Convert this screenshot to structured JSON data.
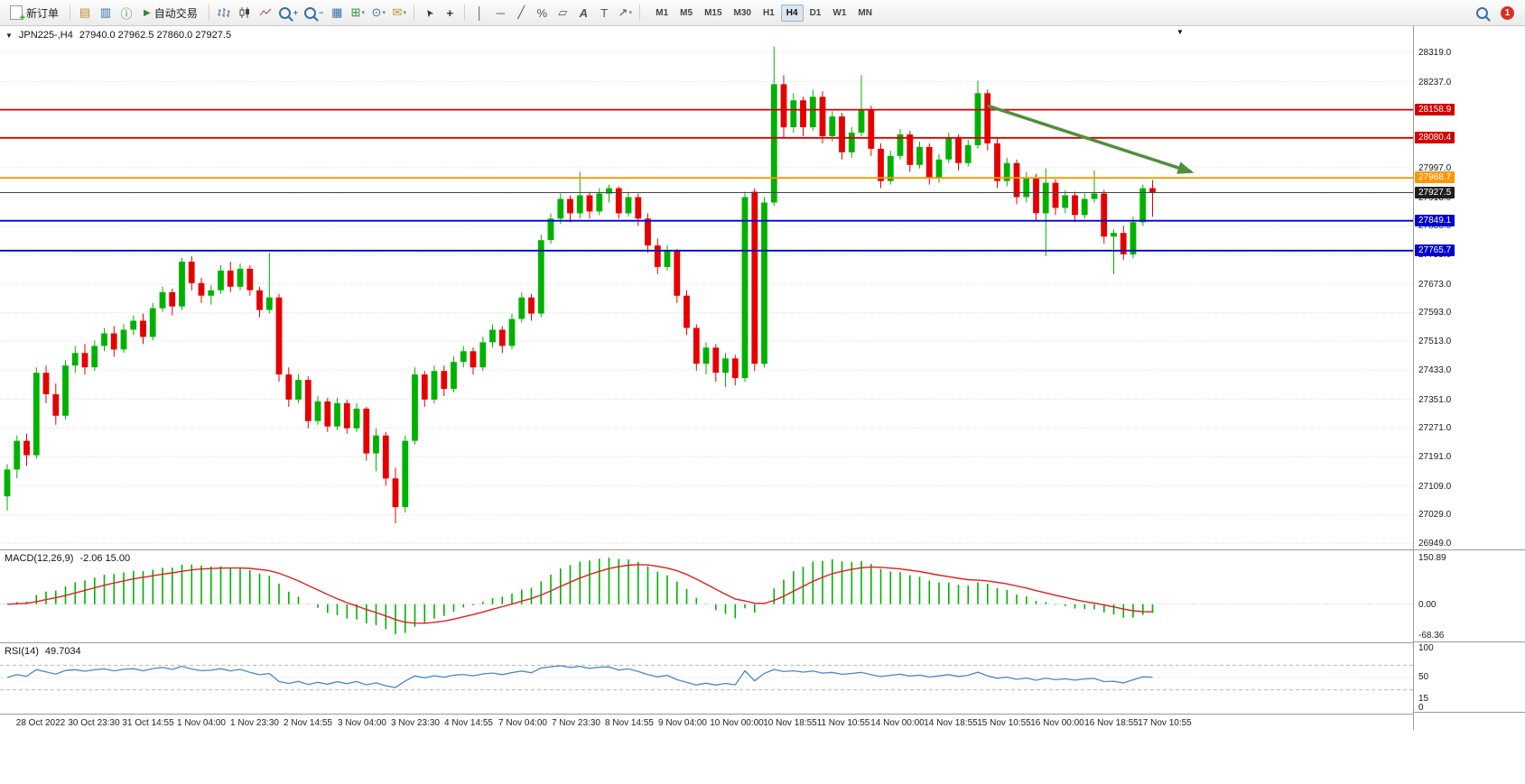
{
  "toolbar": {
    "new_order_label": "新订单",
    "algo_trading_label": "自动交易",
    "timeframes": [
      "M1",
      "M5",
      "M15",
      "M30",
      "H1",
      "H4",
      "D1",
      "W1",
      "MN"
    ],
    "active_timeframe": "H4",
    "notification_count": "1"
  },
  "chart": {
    "symbol_title": "JPN225-,H4",
    "ohlc_text": "27940.0 27962.5 27860.0 27927.5"
  },
  "chart_data": {
    "type": "candlestick",
    "symbol": "JPN225-",
    "timeframe": "H4",
    "scale": {
      "x0": 8,
      "dx": 10.75,
      "y_range": [
        26932,
        28392
      ]
    },
    "candles": [
      [
        27080,
        27170,
        27040,
        27155
      ],
      [
        27155,
        27250,
        27130,
        27235
      ],
      [
        27235,
        27255,
        27165,
        27195
      ],
      [
        27195,
        27440,
        27185,
        27425
      ],
      [
        27425,
        27445,
        27340,
        27365
      ],
      [
        27365,
        27395,
        27280,
        27305
      ],
      [
        27305,
        27460,
        27295,
        27445
      ],
      [
        27445,
        27500,
        27425,
        27480
      ],
      [
        27480,
        27505,
        27420,
        27440
      ],
      [
        27440,
        27515,
        27430,
        27500
      ],
      [
        27500,
        27550,
        27485,
        27535
      ],
      [
        27535,
        27555,
        27470,
        27490
      ],
      [
        27490,
        27560,
        27480,
        27545
      ],
      [
        27545,
        27585,
        27530,
        27570
      ],
      [
        27570,
        27590,
        27505,
        27525
      ],
      [
        27525,
        27620,
        27515,
        27605
      ],
      [
        27605,
        27665,
        27595,
        27650
      ],
      [
        27650,
        27660,
        27585,
        27610
      ],
      [
        27610,
        27745,
        27600,
        27735
      ],
      [
        27735,
        27750,
        27655,
        27675
      ],
      [
        27675,
        27690,
        27620,
        27640
      ],
      [
        27640,
        27670,
        27615,
        27655
      ],
      [
        27655,
        27725,
        27645,
        27710
      ],
      [
        27710,
        27735,
        27650,
        27665
      ],
      [
        27665,
        27730,
        27655,
        27715
      ],
      [
        27715,
        27725,
        27640,
        27655
      ],
      [
        27655,
        27665,
        27580,
        27600
      ],
      [
        27600,
        27760,
        27590,
        27635
      ],
      [
        27635,
        27645,
        27400,
        27420
      ],
      [
        27420,
        27440,
        27330,
        27350
      ],
      [
        27350,
        27420,
        27340,
        27405
      ],
      [
        27405,
        27415,
        27270,
        27290
      ],
      [
        27290,
        27360,
        27280,
        27345
      ],
      [
        27345,
        27355,
        27260,
        27275
      ],
      [
        27275,
        27355,
        27265,
        27340
      ],
      [
        27340,
        27350,
        27255,
        27270
      ],
      [
        27270,
        27340,
        27260,
        27325
      ],
      [
        27325,
        27330,
        27180,
        27200
      ],
      [
        27200,
        27270,
        27150,
        27250
      ],
      [
        27250,
        27260,
        27110,
        27130
      ],
      [
        27130,
        27160,
        27005,
        27050
      ],
      [
        27050,
        27250,
        27035,
        27235
      ],
      [
        27235,
        27440,
        27225,
        27420
      ],
      [
        27420,
        27430,
        27330,
        27350
      ],
      [
        27350,
        27445,
        27340,
        27430
      ],
      [
        27430,
        27445,
        27360,
        27380
      ],
      [
        27380,
        27470,
        27370,
        27455
      ],
      [
        27455,
        27500,
        27440,
        27485
      ],
      [
        27485,
        27495,
        27420,
        27440
      ],
      [
        27440,
        27525,
        27430,
        27510
      ],
      [
        27510,
        27560,
        27495,
        27545
      ],
      [
        27545,
        27555,
        27480,
        27500
      ],
      [
        27500,
        27590,
        27490,
        27575
      ],
      [
        27575,
        27650,
        27565,
        27635
      ],
      [
        27635,
        27645,
        27570,
        27590
      ],
      [
        27590,
        27810,
        27580,
        27795
      ],
      [
        27795,
        27870,
        27785,
        27855
      ],
      [
        27855,
        27925,
        27840,
        27910
      ],
      [
        27910,
        27920,
        27845,
        27870
      ],
      [
        27870,
        27985,
        27855,
        27920
      ],
      [
        27920,
        27930,
        27855,
        27875
      ],
      [
        27875,
        27940,
        27865,
        27925
      ],
      [
        27925,
        27950,
        27900,
        27940
      ],
      [
        27940,
        27945,
        27855,
        27870
      ],
      [
        27870,
        27930,
        27860,
        27915
      ],
      [
        27915,
        27925,
        27835,
        27855
      ],
      [
        27855,
        27870,
        27760,
        27780
      ],
      [
        27780,
        27800,
        27700,
        27720
      ],
      [
        27720,
        27780,
        27710,
        27765
      ],
      [
        27765,
        27770,
        27620,
        27640
      ],
      [
        27640,
        27655,
        27530,
        27550
      ],
      [
        27550,
        27560,
        27430,
        27450
      ],
      [
        27450,
        27510,
        27420,
        27495
      ],
      [
        27495,
        27505,
        27400,
        27425
      ],
      [
        27425,
        27480,
        27385,
        27465
      ],
      [
        27465,
        27475,
        27390,
        27410
      ],
      [
        27410,
        27930,
        27400,
        27915
      ],
      [
        27930,
        27940,
        27430,
        27450
      ],
      [
        27450,
        27915,
        27440,
        27900
      ],
      [
        27900,
        28335,
        27890,
        28230
      ],
      [
        28230,
        28255,
        28080,
        28110
      ],
      [
        28110,
        28205,
        28095,
        28185
      ],
      [
        28185,
        28195,
        28085,
        28110
      ],
      [
        28110,
        28215,
        28100,
        28195
      ],
      [
        28195,
        28210,
        28065,
        28085
      ],
      [
        28085,
        28155,
        28070,
        28140
      ],
      [
        28140,
        28150,
        28020,
        28040
      ],
      [
        28040,
        28110,
        28025,
        28095
      ],
      [
        28095,
        28255,
        28085,
        28160
      ],
      [
        28160,
        28170,
        28030,
        28050
      ],
      [
        28050,
        28065,
        27940,
        27960
      ],
      [
        27960,
        28045,
        27950,
        28030
      ],
      [
        28030,
        28105,
        28020,
        28090
      ],
      [
        28090,
        28100,
        27985,
        28005
      ],
      [
        28005,
        28070,
        27995,
        28055
      ],
      [
        28055,
        28065,
        27950,
        27970
      ],
      [
        27970,
        28035,
        27955,
        28020
      ],
      [
        28020,
        28095,
        28010,
        28080
      ],
      [
        28080,
        28090,
        27990,
        28010
      ],
      [
        28010,
        28075,
        28000,
        28060
      ],
      [
        28060,
        28240,
        28050,
        28205
      ],
      [
        28205,
        28215,
        28045,
        28065
      ],
      [
        28065,
        28080,
        27940,
        27960
      ],
      [
        27960,
        28025,
        27945,
        28010
      ],
      [
        28010,
        28020,
        27895,
        27915
      ],
      [
        27915,
        27985,
        27900,
        27970
      ],
      [
        27970,
        27980,
        27850,
        27870
      ],
      [
        27870,
        27995,
        27750,
        27955
      ],
      [
        27955,
        27965,
        27865,
        27885
      ],
      [
        27885,
        27935,
        27870,
        27920
      ],
      [
        27920,
        27930,
        27845,
        27865
      ],
      [
        27865,
        27925,
        27855,
        27910
      ],
      [
        27910,
        27990,
        27900,
        27925
      ],
      [
        27925,
        27935,
        27785,
        27805
      ],
      [
        27805,
        27825,
        27700,
        27815
      ],
      [
        27815,
        27835,
        27740,
        27755
      ],
      [
        27755,
        27860,
        27745,
        27845
      ],
      [
        27845,
        27950,
        27835,
        27940
      ],
      [
        27940,
        27962.5,
        27860,
        27927.5
      ]
    ],
    "x_axis_labels": [
      "28 Oct 2022",
      "30 Oct 23:30",
      "31 Oct 14:55",
      "1 Nov 04:00",
      "1 Nov 23:30",
      "2 Nov 14:55",
      "3 Nov 04:00",
      "3 Nov 23:30",
      "4 Nov 14:55",
      "7 Nov 04:00",
      "7 Nov 23:30",
      "8 Nov 14:55",
      "9 Nov 04:00",
      "10 Nov 00:00",
      "10 Nov 18:55",
      "11 Nov 10:55",
      "14 Nov 00:00",
      "14 Nov 18:55",
      "15 Nov 10:55",
      "16 Nov 00:00",
      "16 Nov 18:55",
      "17 Nov 10:55"
    ],
    "y_axis_labels": [
      {
        "text": "28319.0",
        "price": 28319.0
      },
      {
        "text": "28237.0",
        "price": 28237.0
      },
      {
        "text": "27997.0",
        "price": 27997.0
      },
      {
        "text": "27913.0",
        "price": 27913.0
      },
      {
        "text": "27835.0",
        "price": 27835.0
      },
      {
        "text": "27755.0",
        "price": 27755.0
      },
      {
        "text": "27673.0",
        "price": 27673.0
      },
      {
        "text": "27593.0",
        "price": 27593.0
      },
      {
        "text": "27513.0",
        "price": 27513.0
      },
      {
        "text": "27433.0",
        "price": 27433.0
      },
      {
        "text": "27351.0",
        "price": 27351.0
      },
      {
        "text": "27271.0",
        "price": 27271.0
      },
      {
        "text": "27191.0",
        "price": 27191.0
      },
      {
        "text": "27109.0",
        "price": 27109.0
      },
      {
        "text": "27029.0",
        "price": 27029.0
      },
      {
        "text": "26949.0",
        "price": 26949.0
      }
    ],
    "hlines": [
      {
        "price": 28158.9,
        "label": "28158.9",
        "type": "red"
      },
      {
        "price": 28080.4,
        "label": "28080.4",
        "type": "red"
      },
      {
        "price": 27968.7,
        "label": "27968.7",
        "type": "orange"
      },
      {
        "price": 27927.5,
        "label": "27927.5",
        "type": "price"
      },
      {
        "price": 27849.1,
        "label": "27849.1",
        "type": "blue"
      },
      {
        "price": 27765.7,
        "label": "27765.7",
        "type": "blue"
      }
    ],
    "trend_arrow": {
      "from_index": 101,
      "from_price": 28170,
      "to_index": 122,
      "to_price": 27985
    },
    "indicators": {
      "macd": {
        "label": "MACD(12,26,9)",
        "value_text": "-2.06 15.00",
        "params": [
          12,
          26,
          9
        ],
        "axis_top": "150.89",
        "axis_zero": "0.00",
        "axis_bottom": "-68.36"
      },
      "rsi": {
        "label": "RSI(14)",
        "value_text": "49.7034",
        "period": 14,
        "levels": [
          70,
          50,
          30
        ],
        "axis_labels": [
          {
            "text": "100",
            "value": 100
          },
          {
            "text": "50",
            "value": 50
          },
          {
            "text": "15",
            "value": 15
          },
          {
            "text": "0",
            "value": 0
          }
        ]
      }
    },
    "colors": {
      "bull": "#00b200",
      "bear": "#e60000",
      "macd_hist": "#00b200",
      "macd_signal": "#e02020",
      "rsi_line": "#4a86c8",
      "level_red": "#d40000",
      "level_orange": "#ff9500",
      "level_blue": "#0000d0",
      "price_line": "#444444",
      "arrow": "#4e8f3c",
      "badge_red": "#d40000",
      "badge_orange": "#ff9500",
      "badge_blue": "#0000d0",
      "badge_price": "#1f1f1f"
    }
  }
}
